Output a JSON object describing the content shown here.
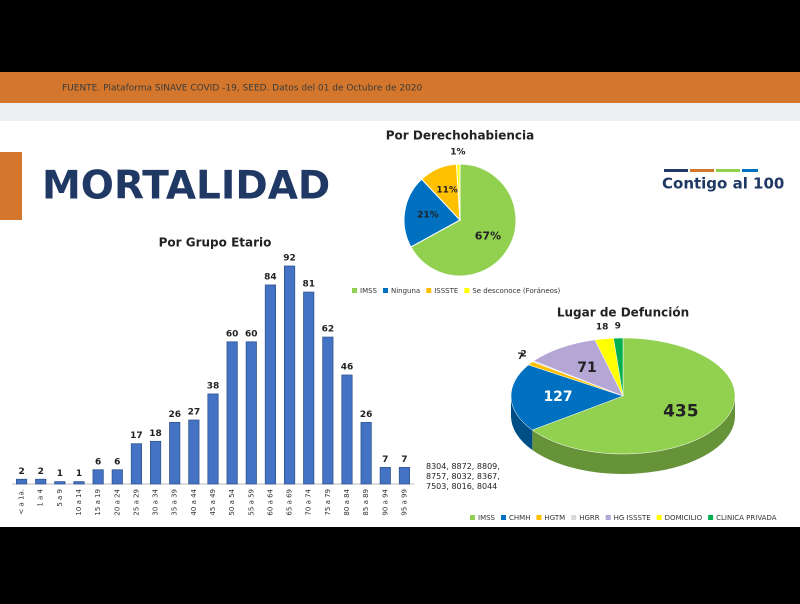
{
  "header": {
    "source": "FUENTE. Plataforma SINAVE COVID -19, SEED. Datos del 01 de Octubre de 2020"
  },
  "title": "MORTALIDAD",
  "logo": "Contigo al 100",
  "note": "8304, 8872, 8809, 8757, 8032, 8367, 7503, 8016, 8044",
  "chart_data": [
    {
      "type": "bar",
      "title": "Por Grupo Etario",
      "color": "#4472c4",
      "categories": [
        "< a 1a.",
        "1 a 4",
        "5 a 9",
        "10 a 14",
        "15 a 19",
        "20 a 24",
        "25 a 29",
        "30 a 34",
        "35 a 39",
        "40 a 44",
        "45 a 49",
        "50 a 54",
        "55 a 59",
        "60 a 64",
        "65 a 69",
        "70 a 74",
        "75 a 79",
        "80 a 84",
        "85 a 89",
        "90 a 94",
        "95 a 99"
      ],
      "values": [
        2,
        2,
        1,
        1,
        6,
        6,
        17,
        18,
        26,
        27,
        38,
        60,
        60,
        84,
        92,
        81,
        62,
        46,
        26,
        7,
        7
      ]
    },
    {
      "type": "pie",
      "title": "Por Derechohabiencia",
      "categories": [
        "IMSS",
        "Ninguna",
        "ISSSTE",
        "Se desconoce (Foráneos)"
      ],
      "values": [
        67,
        21,
        11,
        1
      ],
      "value_labels": [
        "67%",
        "21%",
        "11%",
        "1%"
      ],
      "colors": [
        "#92d050",
        "#0070c0",
        "#ffc000",
        "#ffff00"
      ]
    },
    {
      "type": "pie",
      "three_d": true,
      "title": "Lugar de Defunción",
      "categories": [
        "IMSS",
        "CHMH",
        "HGTM",
        "HGRR",
        "HG ISSSTE",
        "DOMICILIO",
        "CLINICA PRIVADA"
      ],
      "values": [
        435,
        127,
        7,
        2,
        71,
        18,
        9
      ],
      "colors": [
        "#92d050",
        "#0070c0",
        "#ffc000",
        "#d9d9d9",
        "#b4a7d6",
        "#ffff00",
        "#00b050"
      ]
    }
  ]
}
